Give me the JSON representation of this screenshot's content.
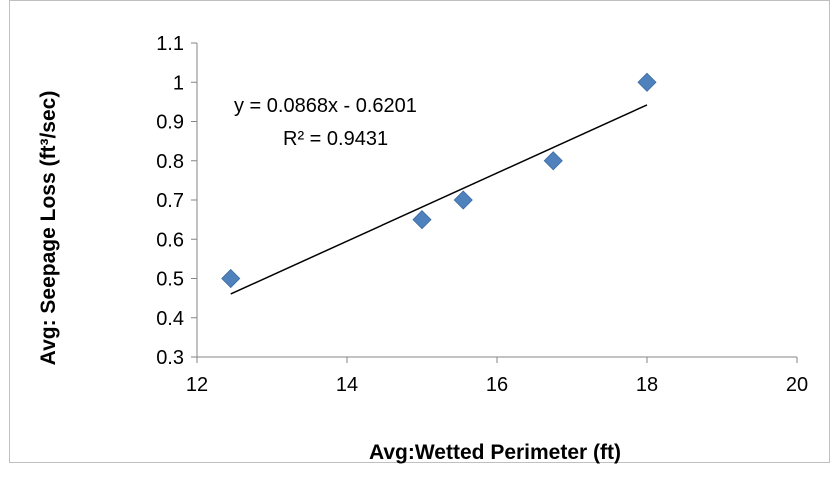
{
  "chart_data": {
    "type": "scatter",
    "title": "",
    "xlabel": "Avg:Wetted Perimeter (ft)",
    "ylabel": "Avg: Seepage Loss (ft³/sec)",
    "xlim": [
      12,
      20
    ],
    "ylim": [
      0.3,
      1.1
    ],
    "x_ticks": [
      "12",
      "14",
      "16",
      "18",
      "20"
    ],
    "y_ticks": [
      "0.3",
      "0.4",
      "0.5",
      "0.6",
      "0.7",
      "0.8",
      "0.9",
      "1",
      "1.1"
    ],
    "grid": false,
    "legend": "none",
    "marker": "diamond",
    "marker_color": "#4f81bd",
    "points": [
      {
        "x": 12.45,
        "y": 0.5
      },
      {
        "x": 15.0,
        "y": 0.65
      },
      {
        "x": 15.55,
        "y": 0.7
      },
      {
        "x": 16.75,
        "y": 0.8
      },
      {
        "x": 18.0,
        "y": 1.0
      }
    ],
    "trendline": {
      "type": "linear",
      "slope": 0.0868,
      "intercept": -0.6201,
      "x_range": [
        12.45,
        18.0
      ],
      "equation": "y = 0.0868x - 0.6201",
      "r_squared": "R² = 0.9431"
    }
  }
}
